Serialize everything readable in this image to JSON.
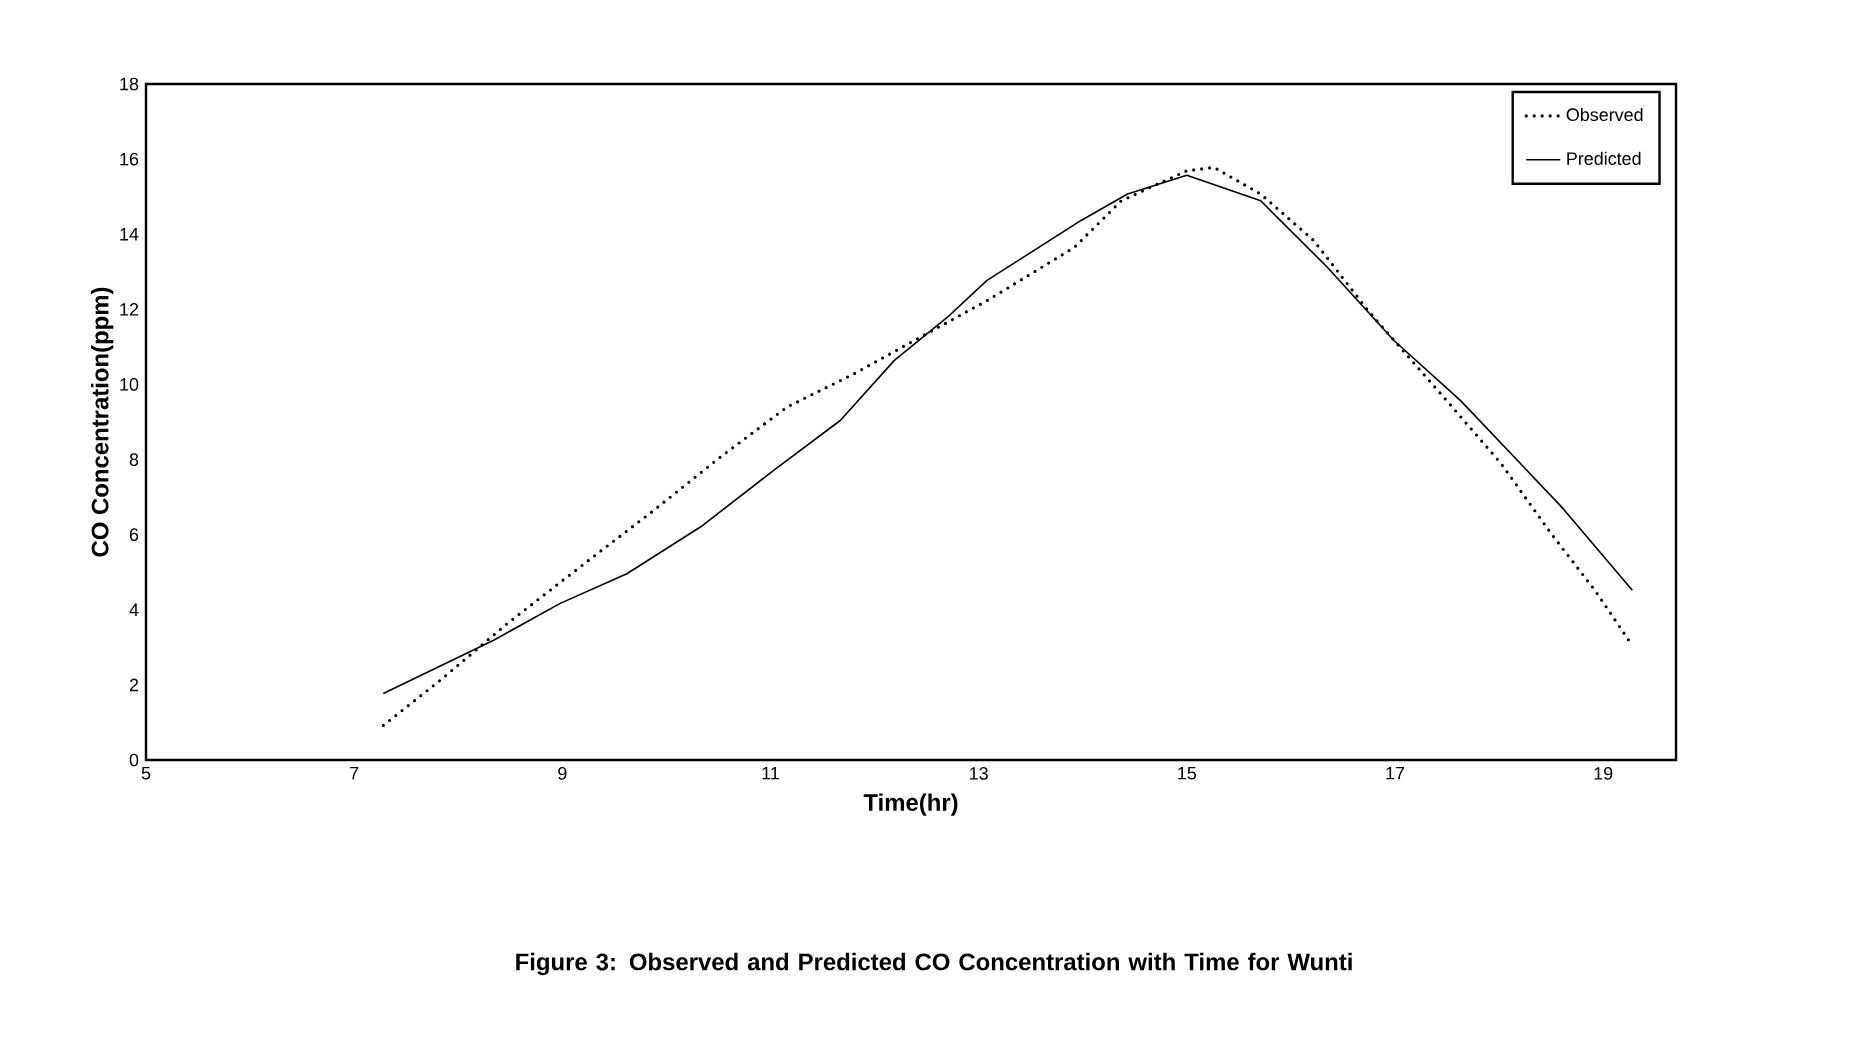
{
  "chart_data": {
    "type": "line",
    "xlabel": "Time(hr)",
    "ylabel": "CO Concentration(ppm)",
    "annotations": [
      "Figure 3: Observed and Predicted CO Concentration with Time for Wunti"
    ],
    "xlim": [
      5,
      19.7
    ],
    "ylim": [
      0,
      18
    ],
    "xticks": [
      5,
      7,
      9,
      11,
      13,
      15,
      17,
      19
    ],
    "yticks": [
      0,
      2,
      4,
      6,
      8,
      10,
      12,
      14,
      16,
      18
    ],
    "grid": false,
    "legend": "top right",
    "series": [
      {
        "name": "Observed",
        "color": "#000000",
        "line_style": "dotted",
        "x": [
          7.28,
          7.83,
          8.47,
          9.17,
          9.88,
          10.52,
          11.16,
          11.8,
          12.44,
          13.08,
          13.92,
          14.37,
          15.0,
          15.26,
          15.71,
          16.22,
          16.74,
          17.44,
          18.02,
          18.5,
          18.92,
          19.28
        ],
        "values": [
          0.92,
          2.13,
          3.63,
          5.14,
          6.65,
          8.07,
          9.4,
          10.28,
          11.26,
          12.23,
          13.65,
          14.89,
          15.69,
          15.78,
          15.07,
          13.83,
          11.97,
          9.75,
          7.89,
          6.03,
          4.52,
          3.05
        ]
      },
      {
        "name": "Predicted",
        "color": "#000000",
        "line_style": "solid",
        "x": [
          7.28,
          8.34,
          8.98,
          9.62,
          10.33,
          11.03,
          11.67,
          12.19,
          12.7,
          13.08,
          13.98,
          14.43,
          15.0,
          15.71,
          16.35,
          16.99,
          17.63,
          18.6,
          19.28
        ],
        "values": [
          1.77,
          3.19,
          4.17,
          4.96,
          6.21,
          7.71,
          9.04,
          10.64,
          11.79,
          12.77,
          14.36,
          15.07,
          15.57,
          14.89,
          13.12,
          11.17,
          9.57,
          6.74,
          4.52
        ]
      }
    ]
  }
}
